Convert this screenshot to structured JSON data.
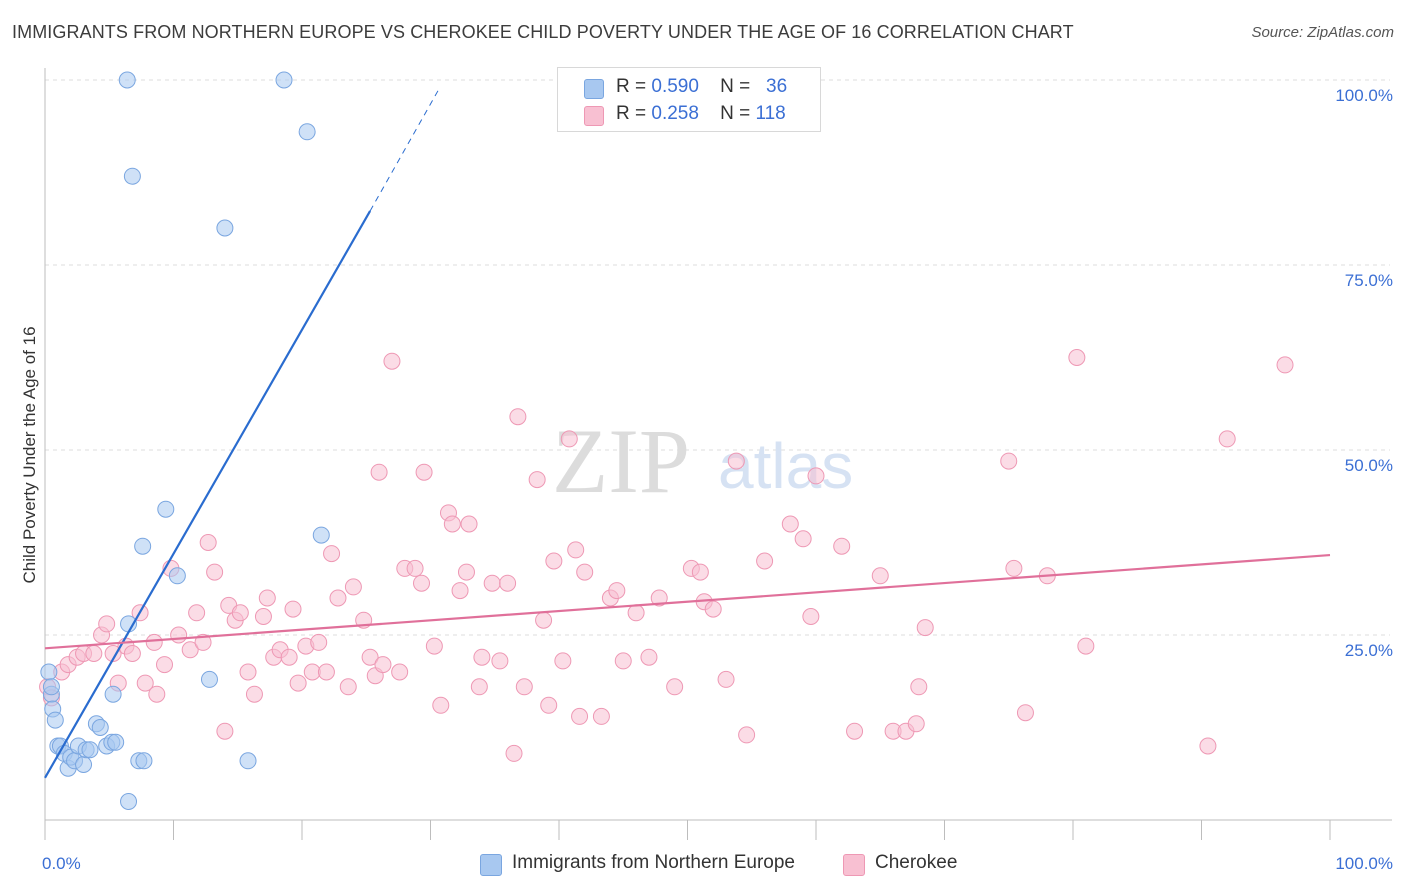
{
  "title": "IMMIGRANTS FROM NORTHERN EUROPE VS CHEROKEE CHILD POVERTY UNDER THE AGE OF 16 CORRELATION CHART",
  "source": "Source: ZipAtlas.com",
  "watermark": {
    "zip": "ZIP",
    "atlas": "atlas"
  },
  "stats": [
    {
      "r_label": "R =",
      "r_value": "0.590",
      "n_label": "N =",
      "n_value": "36",
      "color": "#a8c8f0",
      "border": "#7aa6e0"
    },
    {
      "r_label": "R =",
      "r_value": "0.258",
      "n_label": "N =",
      "n_value": "118",
      "color": "#f8c0d2",
      "border": "#ee98b4"
    }
  ],
  "legend": [
    {
      "label": "Immigrants from Northern Europe",
      "color": "#a8c8f0",
      "border": "#7aa6e0"
    },
    {
      "label": "Cherokee",
      "color": "#f8c0d2",
      "border": "#ee98b4"
    }
  ],
  "chart_data": {
    "type": "scatter",
    "title": "IMMIGRANTS FROM NORTHERN EUROPE VS CHEROKEE CHILD POVERTY UNDER THE AGE OF 16 CORRELATION CHART",
    "xlabel": "",
    "ylabel": "Child Poverty Under the Age of 16",
    "xlim": [
      0,
      100
    ],
    "ylim": [
      0,
      100
    ],
    "x_tick_labels": [
      "0.0%",
      "100.0%"
    ],
    "y_ticks": [
      {
        "value": 25,
        "label": "25.0%"
      },
      {
        "value": 50,
        "label": "50.0%"
      },
      {
        "value": 75,
        "label": "75.0%"
      },
      {
        "value": 100,
        "label": "100.0%"
      }
    ],
    "series": [
      {
        "name": "Immigrants from Northern Europe",
        "color": "#a8c8f0",
        "edge": "#7aa6e0",
        "line_color": "#2a6ccf",
        "trend": {
          "x0": 0,
          "y0": 5.7,
          "x1": 25.3,
          "y1": 82.3,
          "dash_to_x": 30.6,
          "dash_to_y": 98.6
        },
        "points": [
          [
            0.3,
            20
          ],
          [
            0.5,
            17
          ],
          [
            0.6,
            15
          ],
          [
            0.8,
            13.5
          ],
          [
            1,
            10
          ],
          [
            1.2,
            10
          ],
          [
            1.5,
            9
          ],
          [
            1.8,
            7
          ],
          [
            2,
            8.5
          ],
          [
            2.3,
            8
          ],
          [
            2.6,
            10
          ],
          [
            3,
            7.5
          ],
          [
            3.2,
            9.5
          ],
          [
            3.5,
            9.5
          ],
          [
            4,
            13
          ],
          [
            4.3,
            12.5
          ],
          [
            4.8,
            10
          ],
          [
            5.2,
            10.5
          ],
          [
            5.5,
            10.5
          ],
          [
            5.3,
            17
          ],
          [
            6.5,
            26.5
          ],
          [
            7.3,
            8
          ],
          [
            7.7,
            8
          ],
          [
            6.5,
            2.5
          ],
          [
            7.6,
            37
          ],
          [
            9.4,
            42
          ],
          [
            10.3,
            33
          ],
          [
            12.8,
            19
          ],
          [
            14,
            80
          ],
          [
            15.8,
            8
          ],
          [
            6.4,
            100
          ],
          [
            6.8,
            87
          ],
          [
            18.6,
            100
          ],
          [
            20.4,
            93
          ],
          [
            21.5,
            38.5
          ],
          [
            0.5,
            18
          ]
        ]
      },
      {
        "name": "Cherokee",
        "color": "#f8c0d2",
        "edge": "#ee98b4",
        "line_color": "#e0709a",
        "trend": {
          "x0": 0,
          "y0": 23.2,
          "x1": 100,
          "y1": 35.8
        },
        "points": [
          [
            0.2,
            18
          ],
          [
            0.5,
            16.5
          ],
          [
            1.3,
            20
          ],
          [
            1.8,
            21
          ],
          [
            2.5,
            22
          ],
          [
            3,
            22.5
          ],
          [
            3.8,
            22.5
          ],
          [
            4.4,
            25
          ],
          [
            4.8,
            26.5
          ],
          [
            5.3,
            22.5
          ],
          [
            5.7,
            18.5
          ],
          [
            6.3,
            23.5
          ],
          [
            6.8,
            22.5
          ],
          [
            7.4,
            28
          ],
          [
            7.8,
            18.5
          ],
          [
            8.5,
            24
          ],
          [
            8.7,
            17
          ],
          [
            9.3,
            21
          ],
          [
            9.8,
            34
          ],
          [
            10.4,
            25
          ],
          [
            11.3,
            23
          ],
          [
            11.8,
            28
          ],
          [
            12.3,
            24
          ],
          [
            12.7,
            37.5
          ],
          [
            13.2,
            33.5
          ],
          [
            14,
            12
          ],
          [
            14.3,
            29
          ],
          [
            14.8,
            27
          ],
          [
            15.2,
            28
          ],
          [
            15.8,
            20
          ],
          [
            16.3,
            17
          ],
          [
            17,
            27.5
          ],
          [
            17.3,
            30
          ],
          [
            17.8,
            22
          ],
          [
            18.3,
            23
          ],
          [
            19,
            22
          ],
          [
            19.3,
            28.5
          ],
          [
            19.7,
            18.5
          ],
          [
            20.3,
            23.5
          ],
          [
            20.8,
            20
          ],
          [
            21.3,
            24
          ],
          [
            21.9,
            20
          ],
          [
            22.3,
            36
          ],
          [
            22.8,
            30
          ],
          [
            23.6,
            18
          ],
          [
            24,
            31.5
          ],
          [
            24.8,
            27
          ],
          [
            25.3,
            22
          ],
          [
            25.7,
            19.5
          ],
          [
            26,
            47
          ],
          [
            26.3,
            21
          ],
          [
            27,
            62
          ],
          [
            27.6,
            20
          ],
          [
            28,
            34
          ],
          [
            28.8,
            34
          ],
          [
            29.3,
            32
          ],
          [
            29.5,
            47
          ],
          [
            30.3,
            23.5
          ],
          [
            30.8,
            15.5
          ],
          [
            31.4,
            41.5
          ],
          [
            31.7,
            40
          ],
          [
            32.3,
            31
          ],
          [
            32.8,
            33.5
          ],
          [
            33,
            40
          ],
          [
            33.8,
            18
          ],
          [
            34,
            22
          ],
          [
            34.8,
            32
          ],
          [
            35.4,
            21.5
          ],
          [
            36,
            32
          ],
          [
            36.5,
            9
          ],
          [
            36.8,
            54.5
          ],
          [
            37.3,
            18
          ],
          [
            38.3,
            46
          ],
          [
            38.8,
            27
          ],
          [
            39.2,
            15.5
          ],
          [
            39.6,
            35
          ],
          [
            40.3,
            21.5
          ],
          [
            40.8,
            51.5
          ],
          [
            41.3,
            36.5
          ],
          [
            41.6,
            14
          ],
          [
            42,
            33.5
          ],
          [
            43.3,
            14
          ],
          [
            44,
            30
          ],
          [
            44.5,
            31
          ],
          [
            45,
            21.5
          ],
          [
            46,
            28
          ],
          [
            47,
            22
          ],
          [
            47.8,
            30
          ],
          [
            49,
            18
          ],
          [
            50.3,
            34
          ],
          [
            51,
            33.5
          ],
          [
            51.3,
            29.5
          ],
          [
            52,
            28.5
          ],
          [
            53,
            19
          ],
          [
            53.8,
            48.5
          ],
          [
            54.6,
            11.5
          ],
          [
            56,
            35
          ],
          [
            58,
            40
          ],
          [
            59,
            38
          ],
          [
            59.6,
            27.5
          ],
          [
            60,
            46.5
          ],
          [
            62,
            37
          ],
          [
            63,
            12
          ],
          [
            65,
            33
          ],
          [
            66,
            12
          ],
          [
            67,
            12
          ],
          [
            67.8,
            13
          ],
          [
            68,
            18
          ],
          [
            68.5,
            26
          ],
          [
            75.4,
            34
          ],
          [
            76.3,
            14.5
          ],
          [
            78,
            33
          ],
          [
            80.3,
            62.5
          ],
          [
            81,
            23.5
          ],
          [
            90.5,
            10
          ],
          [
            92,
            51.5
          ],
          [
            96.5,
            61.5
          ],
          [
            75,
            48.5
          ]
        ]
      }
    ]
  }
}
